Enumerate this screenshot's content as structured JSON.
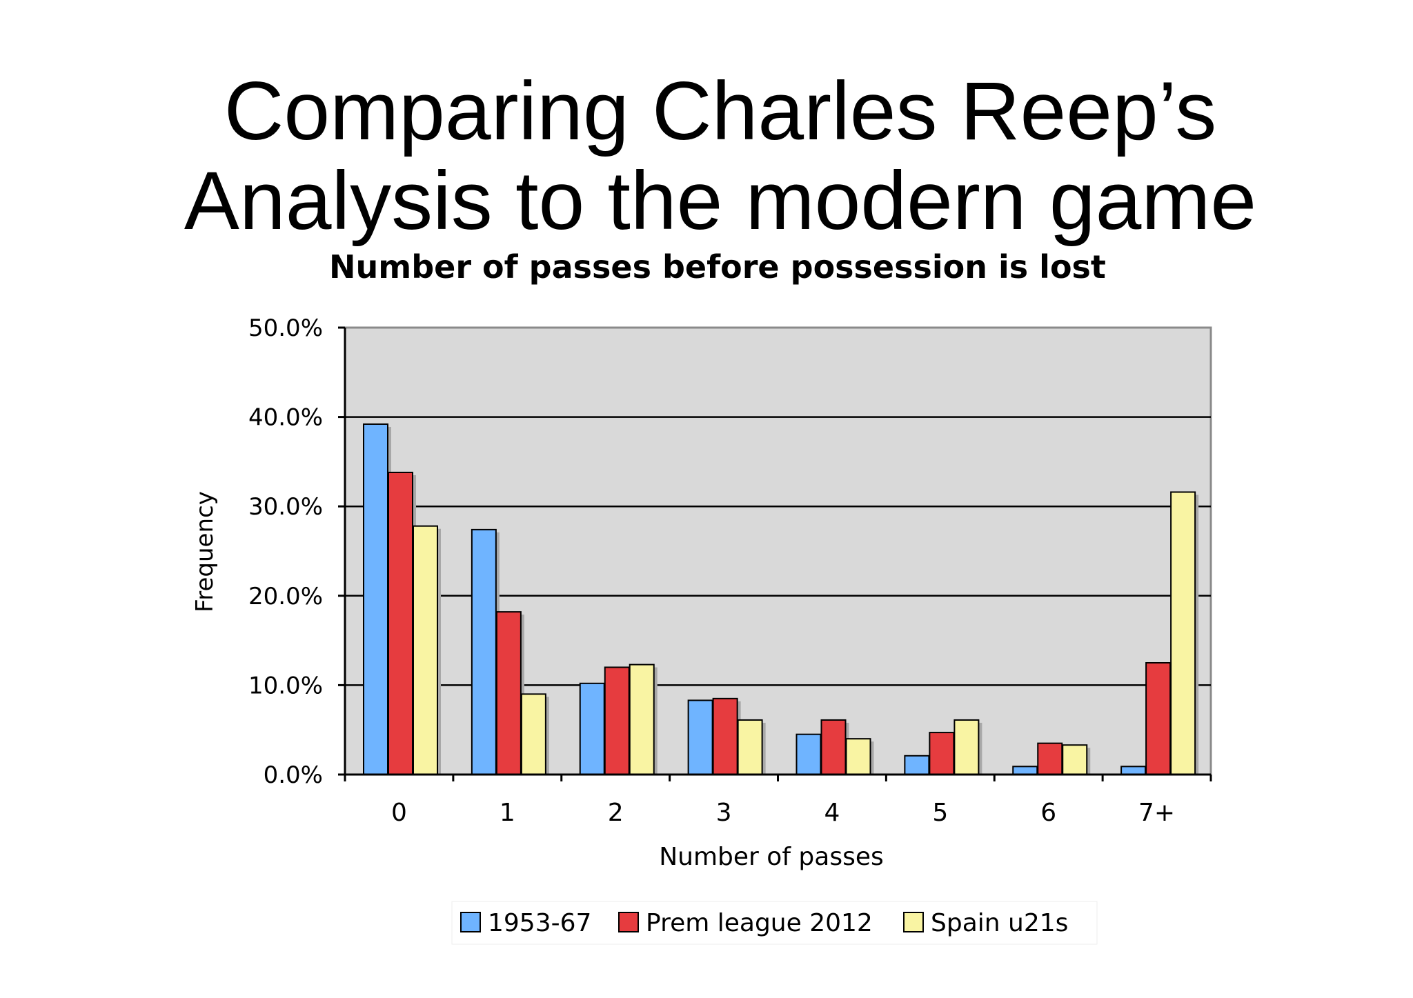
{
  "slide": {
    "title_line1": "Comparing Charles Reep’s",
    "title_line2": "Analysis to the modern game"
  },
  "chart_data": {
    "type": "bar",
    "title": "Number of passes before possession is lost",
    "xlabel": "Number of passes",
    "ylabel": "Frequency",
    "categories": [
      "0",
      "1",
      "2",
      "3",
      "4",
      "5",
      "6",
      "7+"
    ],
    "ylim": [
      0,
      50
    ],
    "yticks": [
      "0.0%",
      "10.0%",
      "20.0%",
      "30.0%",
      "40.0%",
      "50.0%"
    ],
    "grid": true,
    "legend_position": "bottom",
    "series": [
      {
        "name": "1953-67",
        "color": "#6fb4ff",
        "values": [
          39.2,
          27.4,
          10.2,
          8.3,
          4.5,
          2.1,
          0.9,
          0.9
        ]
      },
      {
        "name": "Prem league 2012",
        "color": "#e63c3f",
        "values": [
          33.8,
          18.2,
          12.0,
          8.5,
          6.1,
          4.7,
          3.5,
          12.5
        ]
      },
      {
        "name": "Spain  u21s",
        "color": "#f9f4a3",
        "values": [
          27.8,
          9.0,
          12.3,
          6.1,
          4.0,
          6.1,
          3.3,
          31.6
        ]
      }
    ],
    "plot_background": "#d9d9d9"
  }
}
